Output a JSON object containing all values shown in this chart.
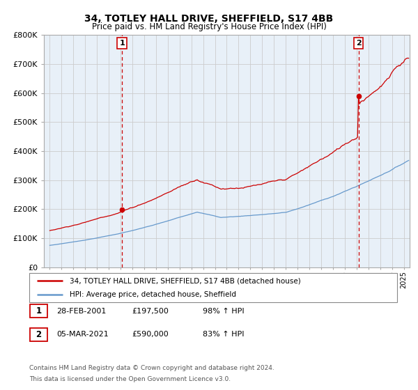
{
  "title1": "34, TOTLEY HALL DRIVE, SHEFFIELD, S17 4BB",
  "title2": "Price paid vs. HM Land Registry's House Price Index (HPI)",
  "background_color": "#ffffff",
  "plot_bg_color": "#e8f0f8",
  "grid_color": "#cccccc",
  "hpi_color": "#6699cc",
  "price_color": "#cc0000",
  "sale1_year": 2001.12,
  "sale1_price": 197500,
  "sale2_year": 2021.17,
  "sale2_price": 590000,
  "legend_line1": "34, TOTLEY HALL DRIVE, SHEFFIELD, S17 4BB (detached house)",
  "legend_line2": "HPI: Average price, detached house, Sheffield",
  "footer1": "Contains HM Land Registry data © Crown copyright and database right 2024.",
  "footer2": "This data is licensed under the Open Government Licence v3.0.",
  "ylim_max": 800000,
  "ylim_min": 0,
  "xmin": 1995,
  "xmax": 2025
}
